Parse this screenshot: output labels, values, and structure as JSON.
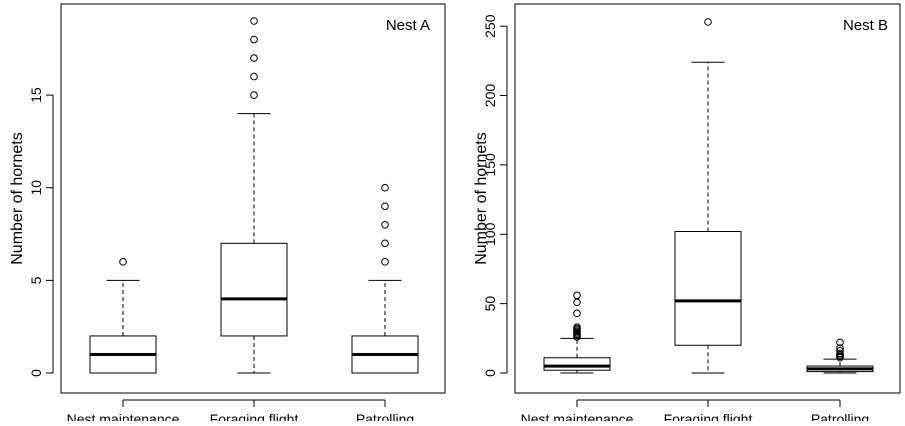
{
  "chart_data": [
    {
      "type": "box",
      "title": "Nest A",
      "xlabel": "",
      "ylabel": "Number of hornets",
      "ylim": [
        0,
        19
      ],
      "yticks": [
        0,
        5,
        10,
        15
      ],
      "categories": [
        "Nest maintenance",
        "Foraging flight",
        "Patrolling"
      ],
      "boxes": [
        {
          "category": "Nest maintenance",
          "min": 0,
          "q1": 0,
          "median": 1,
          "q3": 2,
          "max": 5,
          "outliers": [
            6
          ]
        },
        {
          "category": "Foraging flight",
          "min": 0,
          "q1": 2,
          "median": 4,
          "q3": 7,
          "max": 14,
          "outliers": [
            15,
            16,
            17,
            18,
            19
          ]
        },
        {
          "category": "Patrolling",
          "min": 0,
          "q1": 0,
          "median": 1,
          "q3": 2,
          "max": 5,
          "outliers": [
            6,
            7,
            8,
            9,
            10
          ]
        }
      ]
    },
    {
      "type": "box",
      "title": "Nest B",
      "xlabel": "",
      "ylabel": "Number of hornets",
      "ylim": [
        0,
        253
      ],
      "yticks": [
        0,
        50,
        100,
        150,
        200,
        250
      ],
      "categories": [
        "Nest maintenance",
        "Foraging flight",
        "Patrolling"
      ],
      "boxes": [
        {
          "category": "Nest maintenance",
          "min": 0,
          "q1": 2,
          "median": 5,
          "q3": 11,
          "max": 25,
          "outliers": [
            26,
            27,
            28,
            29,
            30,
            31,
            32,
            33,
            43,
            51,
            56
          ]
        },
        {
          "category": "Foraging flight",
          "min": 0,
          "q1": 20,
          "median": 52,
          "q3": 102,
          "max": 224,
          "outliers": [
            253
          ]
        },
        {
          "category": "Patrolling",
          "min": 0,
          "q1": 1,
          "median": 3,
          "q3": 5,
          "max": 10,
          "outliers": [
            11,
            12,
            13,
            14,
            16,
            18,
            22
          ]
        }
      ]
    }
  ]
}
